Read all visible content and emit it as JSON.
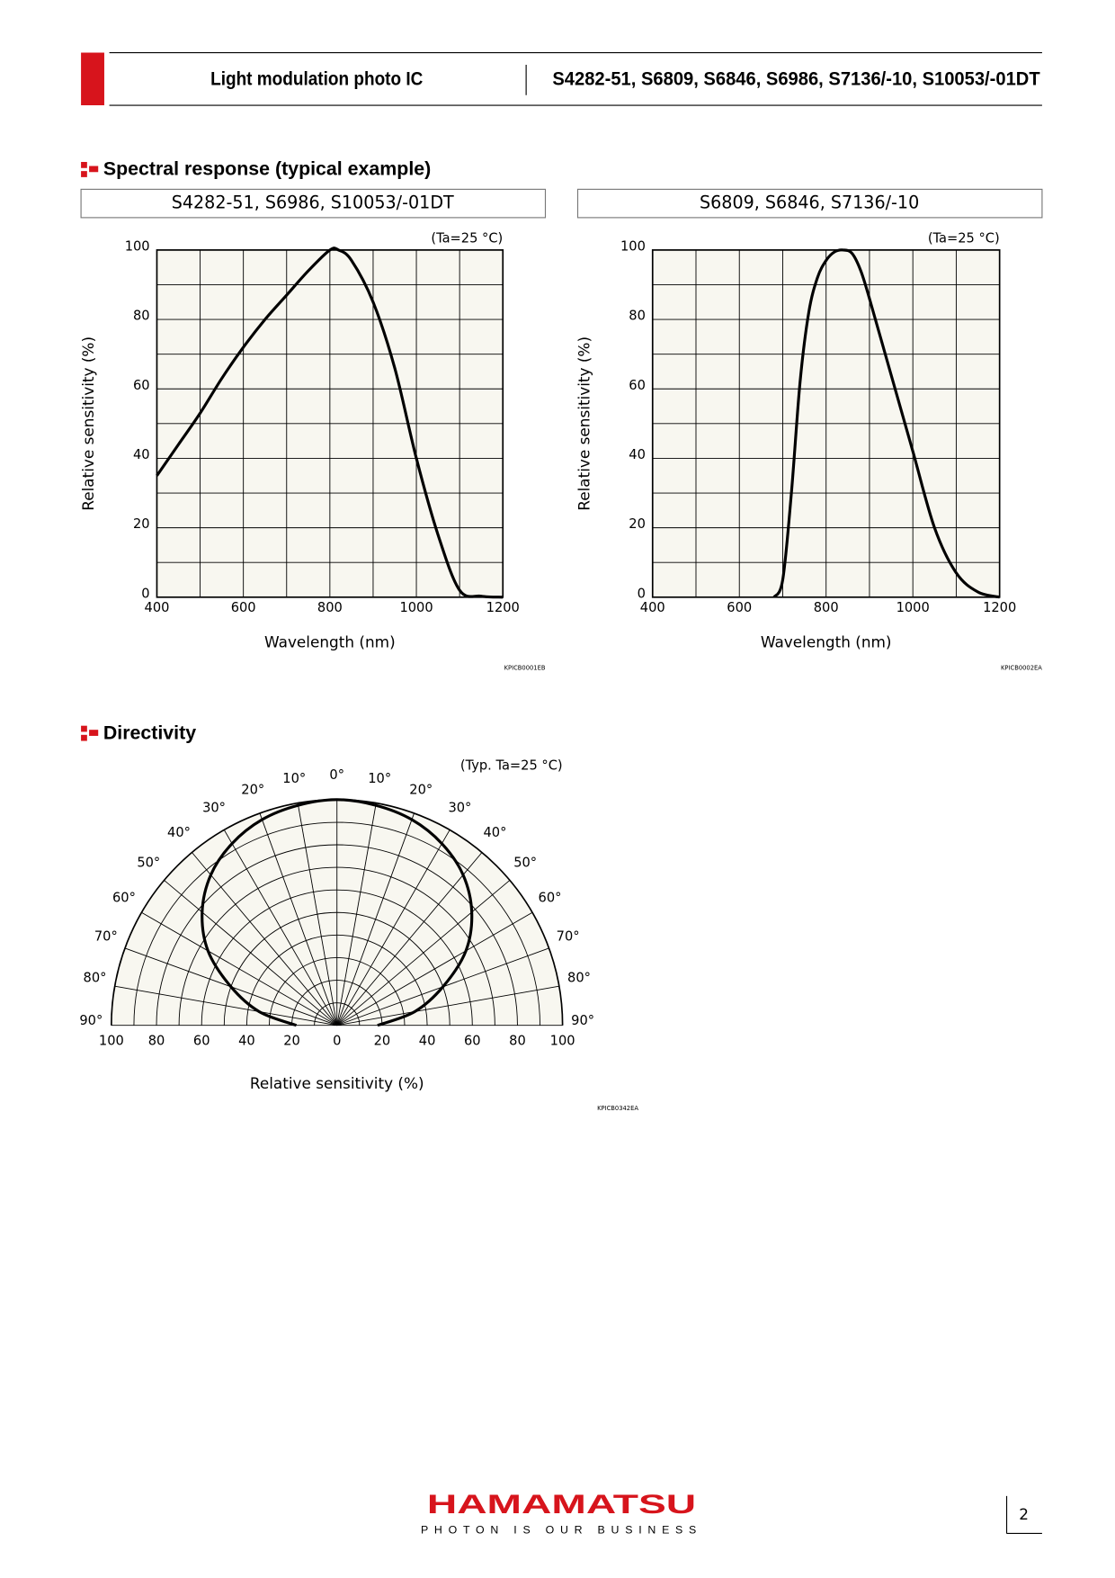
{
  "header": {
    "title": "Light modulation photo IC",
    "products": "S4282-51, S6809, S6846, S6986, S7136/-10, S10053/-01DT"
  },
  "sections": [
    "Spectral response (typical example)",
    "Directivity"
  ],
  "chart_data": [
    {
      "type": "line",
      "title": "S4282-51, S6986, S10053/-01DT",
      "annotation": "(Ta=25 °C)",
      "code": "KPICB0001EB",
      "xlabel": "Wavelength (nm)",
      "ylabel": "Relative sensitivity (%)",
      "color": "#000000",
      "x": [
        400,
        450,
        500,
        550,
        600,
        650,
        700,
        750,
        800,
        820,
        850,
        900,
        950,
        1000,
        1050,
        1100,
        1150,
        1200
      ],
      "values": [
        35,
        44,
        53,
        63,
        72,
        80,
        87,
        94,
        100,
        100,
        97,
        85,
        66,
        40,
        18,
        2,
        0.3,
        0
      ],
      "xlim": [
        400,
        1200
      ],
      "ylim": [
        0,
        100
      ],
      "xticks": [
        400,
        600,
        800,
        1000,
        1200
      ],
      "yticks": [
        0,
        20,
        40,
        60,
        80,
        100
      ],
      "xminorticks": [
        500,
        700,
        900,
        1100
      ],
      "yminorticks": [
        10,
        30,
        50,
        70,
        90
      ]
    },
    {
      "type": "line",
      "title": "S6809, S6846, S7136/-10",
      "annotation": "(Ta=25 °C)",
      "code": "KPICB0002EA",
      "xlabel": "Wavelength (nm)",
      "ylabel": "Relative sensitivity (%)",
      "color": "#000000",
      "x": [
        680,
        700,
        720,
        740,
        760,
        780,
        800,
        820,
        840,
        860,
        880,
        900,
        950,
        1000,
        1050,
        1100,
        1150,
        1200
      ],
      "values": [
        0,
        5,
        30,
        62,
        82,
        92,
        97,
        99.5,
        100,
        99,
        94,
        86,
        64,
        42,
        20,
        7,
        1.5,
        0
      ],
      "xlim": [
        400,
        1200
      ],
      "ylim": [
        0,
        100
      ],
      "xticks": [
        400,
        600,
        800,
        1000,
        1200
      ],
      "yticks": [
        0,
        20,
        40,
        60,
        80,
        100
      ],
      "xminorticks": [
        500,
        700,
        900,
        1100
      ],
      "yminorticks": [
        10,
        30,
        50,
        70,
        90
      ]
    },
    {
      "type": "polar",
      "annotation": "(Typ. Ta=25 °C)",
      "code": "KPICB0342EA",
      "xlabel": "Relative sensitivity (%)",
      "color": "#000000",
      "angles": [
        -90,
        -80,
        -70,
        -60,
        -50,
        -40,
        -30,
        -20,
        -10,
        0,
        10,
        20,
        30,
        40,
        50,
        60,
        70,
        80,
        90
      ],
      "values": [
        18,
        35,
        50,
        66,
        78,
        87,
        93,
        97,
        99,
        100,
        99,
        97,
        93,
        87,
        78,
        66,
        50,
        35,
        18
      ],
      "rlim": [
        0,
        100
      ],
      "rticks": [
        0,
        20,
        40,
        60,
        80,
        100
      ],
      "rminorticks": [
        10,
        30,
        50,
        70,
        90
      ],
      "angleticks": [
        {
          "value": 0,
          "label": "0°"
        },
        {
          "value": 10,
          "label": "10°"
        },
        {
          "value": 20,
          "label": "20°"
        },
        {
          "value": 30,
          "label": "30°"
        },
        {
          "value": 40,
          "label": "40°"
        },
        {
          "value": 50,
          "label": "50°"
        },
        {
          "value": 60,
          "label": "60°"
        },
        {
          "value": 70,
          "label": "70°"
        },
        {
          "value": 80,
          "label": "80°"
        },
        {
          "value": 90,
          "label": "90°"
        }
      ]
    }
  ],
  "footer": {
    "brand": "HAMAMATSU",
    "tagline": "PHOTON IS OUR BUSINESS",
    "page": "2"
  }
}
